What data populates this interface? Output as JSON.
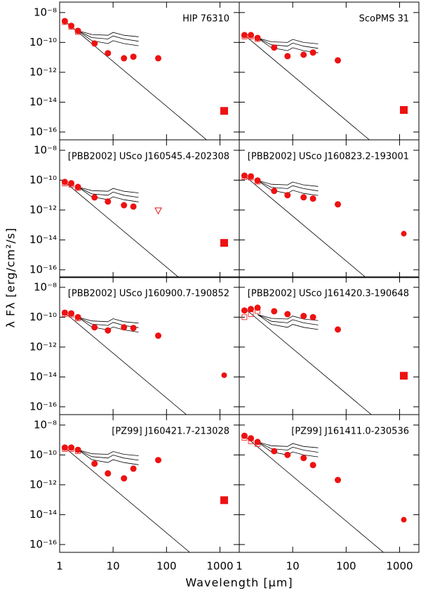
{
  "chart_data": {
    "type": "scatter",
    "xlabel": "Wavelength [μm]",
    "ylabel": "λ Fλ [erg/cm²/s]",
    "log_x": true,
    "log_y": true,
    "xlim": [
      1,
      2300
    ],
    "ylim": [
      3e-17,
      5e-08
    ],
    "xticks": [
      1,
      10,
      100,
      1000
    ],
    "yticks": [
      {
        "value": 1e-08,
        "label": "10⁻⁸"
      },
      {
        "value": 1e-10,
        "label": "10⁻¹⁰"
      },
      {
        "value": 1e-12,
        "label": "10⁻¹²"
      },
      {
        "value": 1e-14,
        "label": "10⁻¹⁴"
      },
      {
        "value": 1e-16,
        "label": "10⁻¹⁶"
      }
    ],
    "color": "#ee1111",
    "line_color": "#000000",
    "panels": [
      {
        "title": "HIP 76310",
        "photometry": {
          "x": [
            1.25,
            1.65,
            2.2,
            4.5,
            8,
            16,
            24,
            70
          ],
          "values": [
            2.7e-09,
            1.3e-09,
            6e-10,
            8.5e-11,
            1.9e-11,
            8.7e-12,
            1.1e-11,
            8.7e-12
          ]
        },
        "observed": {
          "x": [
            1.25,
            1.65,
            2.2
          ],
          "values": [
            2.3e-09,
            1.1e-09,
            5e-10
          ]
        },
        "mm": {
          "x": 1200,
          "value": 2.6e-15,
          "marker": "square"
        },
        "photosphere": {
          "x": [
            1.25,
            1000
          ],
          "values": [
            2.7e-09,
            5.3e-18
          ]
        },
        "models": [
          {
            "x": [
              2.2,
              4,
              8,
              10,
              16,
              30
            ],
            "values": [
              6e-10,
              3.4e-10,
              3e-10,
              4.7e-10,
              3e-10,
              2.4e-10
            ]
          },
          {
            "x": [
              2.2,
              4,
              8,
              10,
              16,
              30
            ],
            "values": [
              6e-10,
              2.1e-10,
              1.7e-10,
              2.7e-10,
              1.7e-10,
              1.2e-10
            ]
          },
          {
            "x": [
              2.2,
              4,
              8,
              10,
              16,
              30
            ],
            "values": [
              6e-10,
              1.3e-10,
              8.4e-11,
              1.3e-10,
              8.4e-11,
              6e-11
            ]
          }
        ]
      },
      {
        "title": "ScoPMS 31",
        "photometry": {
          "x": [
            1.25,
            1.65,
            2.2,
            4.5,
            8,
            16,
            24,
            70
          ],
          "values": [
            3.1e-10,
            3.1e-10,
            2e-10,
            4.5e-11,
            1.2e-11,
            1.5e-11,
            2.1e-11,
            6.3e-12
          ]
        },
        "observed": {
          "x": [
            1.25,
            1.65,
            2.2
          ],
          "values": [
            2.5e-10,
            2.5e-10,
            1.7e-10
          ]
        },
        "mm": {
          "x": 1200,
          "value": 3e-15,
          "marker": "square"
        },
        "photosphere": {
          "x": [
            1.25,
            1000
          ],
          "values": [
            3.1e-10,
            6e-19
          ]
        },
        "models": [
          {
            "x": [
              2.2,
              4,
              8,
              10,
              16,
              30
            ],
            "values": [
              2e-10,
              1.1e-10,
              1e-10,
              1.6e-10,
              1e-10,
              8e-11
            ]
          },
          {
            "x": [
              2.2,
              4,
              8,
              10,
              16,
              30
            ],
            "values": [
              2e-10,
              7e-11,
              5.6e-11,
              9e-11,
              5.6e-11,
              4e-11
            ]
          },
          {
            "x": [
              2.2,
              4,
              8,
              10,
              16,
              30
            ],
            "values": [
              2e-10,
              4.4e-11,
              2.8e-11,
              4.4e-11,
              2.8e-11,
              2e-11
            ]
          }
        ]
      },
      {
        "title": "[PBB2002] USco J160545.4-202308",
        "photometry": {
          "x": [
            1.25,
            1.65,
            2.2,
            4.5,
            8,
            16,
            24
          ],
          "values": [
            7.6e-11,
            6.2e-11,
            3.5e-11,
            7e-12,
            3.7e-12,
            2.1e-12,
            1.7e-12
          ]
        },
        "observed": {
          "x": [
            1.25,
            1.65,
            2.2
          ],
          "values": [
            6e-11,
            5e-11,
            3e-11
          ]
        },
        "upper_limit": {
          "x": 70,
          "value": 9e-13
        },
        "mm": {
          "x": 1200,
          "value": 6.3e-15,
          "marker": "square"
        },
        "photosphere": {
          "x": [
            1.25,
            1000
          ],
          "values": [
            7.6e-11,
            1.5e-19
          ]
        },
        "models": [
          {
            "x": [
              2.2,
              4,
              8,
              10,
              16,
              30
            ],
            "values": [
              3.5e-11,
              2e-11,
              1.8e-11,
              2.8e-11,
              1.8e-11,
              1.4e-11
            ]
          },
          {
            "x": [
              2.2,
              4,
              8,
              10,
              16,
              30
            ],
            "values": [
              3.5e-11,
              1.2e-11,
              9.8e-12,
              1.6e-11,
              9.8e-12,
              7e-12
            ]
          },
          {
            "x": [
              2.2,
              4,
              8,
              10,
              16,
              30
            ],
            "values": [
              3.5e-11,
              7.7e-12,
              4.9e-12,
              7.7e-12,
              4.9e-12,
              3.5e-12
            ]
          }
        ]
      },
      {
        "title": "[PBB2002] USco J160823.2-193001",
        "photometry": {
          "x": [
            1.25,
            1.65,
            2.2,
            4.5,
            8,
            16,
            24,
            70
          ],
          "values": [
            2e-10,
            1.8e-10,
            9.5e-11,
            1.9e-11,
            9.8e-12,
            7.1e-12,
            5.8e-12,
            2.4e-12
          ]
        },
        "observed": {
          "x": [
            1.25,
            1.65,
            2.2
          ],
          "values": [
            1.6e-10,
            1.5e-10,
            8e-11
          ]
        },
        "mm": {
          "x": 1200,
          "value": 2.6e-14,
          "marker": "circle"
        },
        "photosphere": {
          "x": [
            1.25,
            1000
          ],
          "values": [
            2e-10,
            3.9e-19
          ]
        },
        "models": [
          {
            "x": [
              2.2,
              4,
              8,
              10,
              16,
              30
            ],
            "values": [
              9.5e-11,
              5.3e-11,
              4.8e-11,
              7.5e-11,
              4.8e-11,
              3.8e-11
            ]
          },
          {
            "x": [
              2.2,
              4,
              8,
              10,
              16,
              30
            ],
            "values": [
              9.5e-11,
              3.3e-11,
              2.7e-11,
              4.3e-11,
              2.7e-11,
              1.9e-11
            ]
          },
          {
            "x": [
              2.2,
              4,
              8,
              10,
              16,
              30
            ],
            "values": [
              9.5e-11,
              2.1e-11,
              1.3e-11,
              2.1e-11,
              1.3e-11,
              9.5e-12
            ]
          }
        ]
      },
      {
        "title": "[PBB2002] USco J160900.7-190852",
        "photometry": {
          "x": [
            1.25,
            1.65,
            2.2,
            4.5,
            8,
            16,
            24,
            70
          ],
          "values": [
            2e-10,
            1.8e-10,
            1e-10,
            2.1e-11,
            1.3e-11,
            2.1e-11,
            1.9e-11,
            5.8e-12
          ]
        },
        "observed": {
          "x": [
            1.25,
            1.65,
            2.2
          ],
          "values": [
            1.6e-10,
            1.5e-10,
            8.5e-11
          ]
        },
        "mm": {
          "x": 1200,
          "value": 1.3e-14,
          "marker": "circle"
        },
        "photosphere": {
          "x": [
            1.25,
            1000
          ],
          "values": [
            2e-10,
            3.9e-19
          ]
        },
        "models": [
          {
            "x": [
              2.2,
              4,
              8,
              10,
              16,
              30
            ],
            "values": [
              1e-10,
              5.6e-11,
              5e-11,
              7.9e-11,
              5e-11,
              4e-11
            ]
          },
          {
            "x": [
              2.2,
              4,
              8,
              10,
              16,
              30
            ],
            "values": [
              1e-10,
              3.5e-11,
              2.8e-11,
              4.5e-11,
              2.8e-11,
              2e-11
            ]
          },
          {
            "x": [
              2.2,
              4,
              8,
              10,
              16,
              30
            ],
            "values": [
              1e-10,
              2.2e-11,
              1.4e-11,
              2.2e-11,
              1.4e-11,
              1e-11
            ]
          }
        ]
      },
      {
        "title": "[PBB2002] USco J161420.3-190648",
        "photometry": {
          "x": [
            1.25,
            1.65,
            2.2,
            4.5,
            8,
            16,
            24,
            70
          ],
          "values": [
            2.8e-10,
            3.5e-10,
            4.3e-10,
            2.5e-10,
            1.6e-10,
            1.2e-10,
            1e-10,
            1.5e-11
          ]
        },
        "observed": {
          "x": [
            1.25,
            1.65,
            2.2
          ],
          "values": [
            1e-10,
            1.6e-10,
            2.6e-10
          ]
        },
        "mm": {
          "x": 1200,
          "value": 1.2e-14,
          "marker": "square"
        },
        "photosphere": {
          "x": [
            1.25,
            1000
          ],
          "values": [
            4e-10,
            7.8e-19
          ]
        },
        "models": [
          {
            "x": [
              2.2,
              4,
              8,
              10,
              16,
              30
            ],
            "values": [
              1.5e-10,
              8.4e-11,
              7.5e-11,
              1.2e-10,
              7.5e-11,
              6e-11
            ]
          },
          {
            "x": [
              2.2,
              4,
              8,
              10,
              16,
              30
            ],
            "values": [
              1.5e-10,
              5.3e-11,
              4.2e-11,
              6.8e-11,
              4.2e-11,
              3e-11
            ]
          },
          {
            "x": [
              2.2,
              4,
              8,
              10,
              16,
              30
            ],
            "values": [
              1.5e-10,
              3.3e-11,
              2.1e-11,
              3.3e-11,
              2.1e-11,
              1.5e-11
            ]
          }
        ]
      },
      {
        "title": "[PZ99] J160421.7-213028",
        "photometry": {
          "x": [
            1.25,
            1.65,
            2.2,
            4.5,
            8,
            16,
            24,
            70
          ],
          "values": [
            3.1e-10,
            3.1e-10,
            2.2e-10,
            2.6e-11,
            5.8e-12,
            2.7e-12,
            1.2e-11,
            4.5e-11
          ]
        },
        "observed": {
          "x": [
            1.25,
            1.65,
            2.2
          ],
          "values": [
            2.5e-10,
            2.5e-10,
            1.8e-10
          ]
        },
        "mm": {
          "x": 1200,
          "value": 9.3e-14,
          "marker": "square"
        },
        "photosphere": {
          "x": [
            1.25,
            1000
          ],
          "values": [
            3.1e-10,
            6e-19
          ]
        },
        "models": [
          {
            "x": [
              2.2,
              4,
              8,
              10,
              16,
              30
            ],
            "values": [
              2.2e-10,
              1.2e-10,
              1.1e-10,
              1.7e-10,
              1.1e-10,
              8.8e-11
            ]
          },
          {
            "x": [
              2.2,
              4,
              8,
              10,
              16,
              30
            ],
            "values": [
              2.2e-10,
              7.7e-11,
              6.2e-11,
              9.9e-11,
              6.2e-11,
              4.4e-11
            ]
          },
          {
            "x": [
              2.2,
              4,
              8,
              10,
              16,
              30
            ],
            "values": [
              2.2e-10,
              4.8e-11,
              3.1e-11,
              4.8e-11,
              3.1e-11,
              2.2e-11
            ]
          }
        ]
      },
      {
        "title": "[PZ99] J161411.0-230536",
        "photometry": {
          "x": [
            1.25,
            1.65,
            2.2,
            4.5,
            8,
            16,
            24,
            70
          ],
          "values": [
            1.9e-09,
            1.3e-09,
            7.4e-10,
            1.8e-10,
            1e-10,
            6.2e-11,
            2.1e-11,
            2.1e-12
          ]
        },
        "observed": {
          "x": [
            1.25,
            1.65,
            2.2
          ],
          "values": [
            1.4e-09,
            8.3e-10,
            5.4e-10
          ]
        },
        "mm": {
          "x": 1200,
          "value": 4.6e-15,
          "marker": "circle"
        },
        "photosphere": {
          "x": [
            1.25,
            1000
          ],
          "values": [
            1.9e-09,
            3.7e-18
          ]
        },
        "models": [
          {
            "x": [
              2.2,
              4,
              8,
              10,
              16,
              30
            ],
            "values": [
              7.4e-10,
              4.1e-10,
              3.7e-10,
              5.8e-10,
              3.7e-10,
              3e-10
            ]
          },
          {
            "x": [
              2.2,
              4,
              8,
              10,
              16,
              30
            ],
            "values": [
              7.4e-10,
              2.6e-10,
              2.1e-10,
              3.3e-10,
              2.1e-10,
              1.5e-10
            ]
          },
          {
            "x": [
              2.2,
              4,
              8,
              10,
              16,
              30
            ],
            "values": [
              7.4e-10,
              1.6e-10,
              1e-10,
              1.6e-10,
              1e-10,
              7.4e-11
            ]
          }
        ]
      }
    ]
  }
}
